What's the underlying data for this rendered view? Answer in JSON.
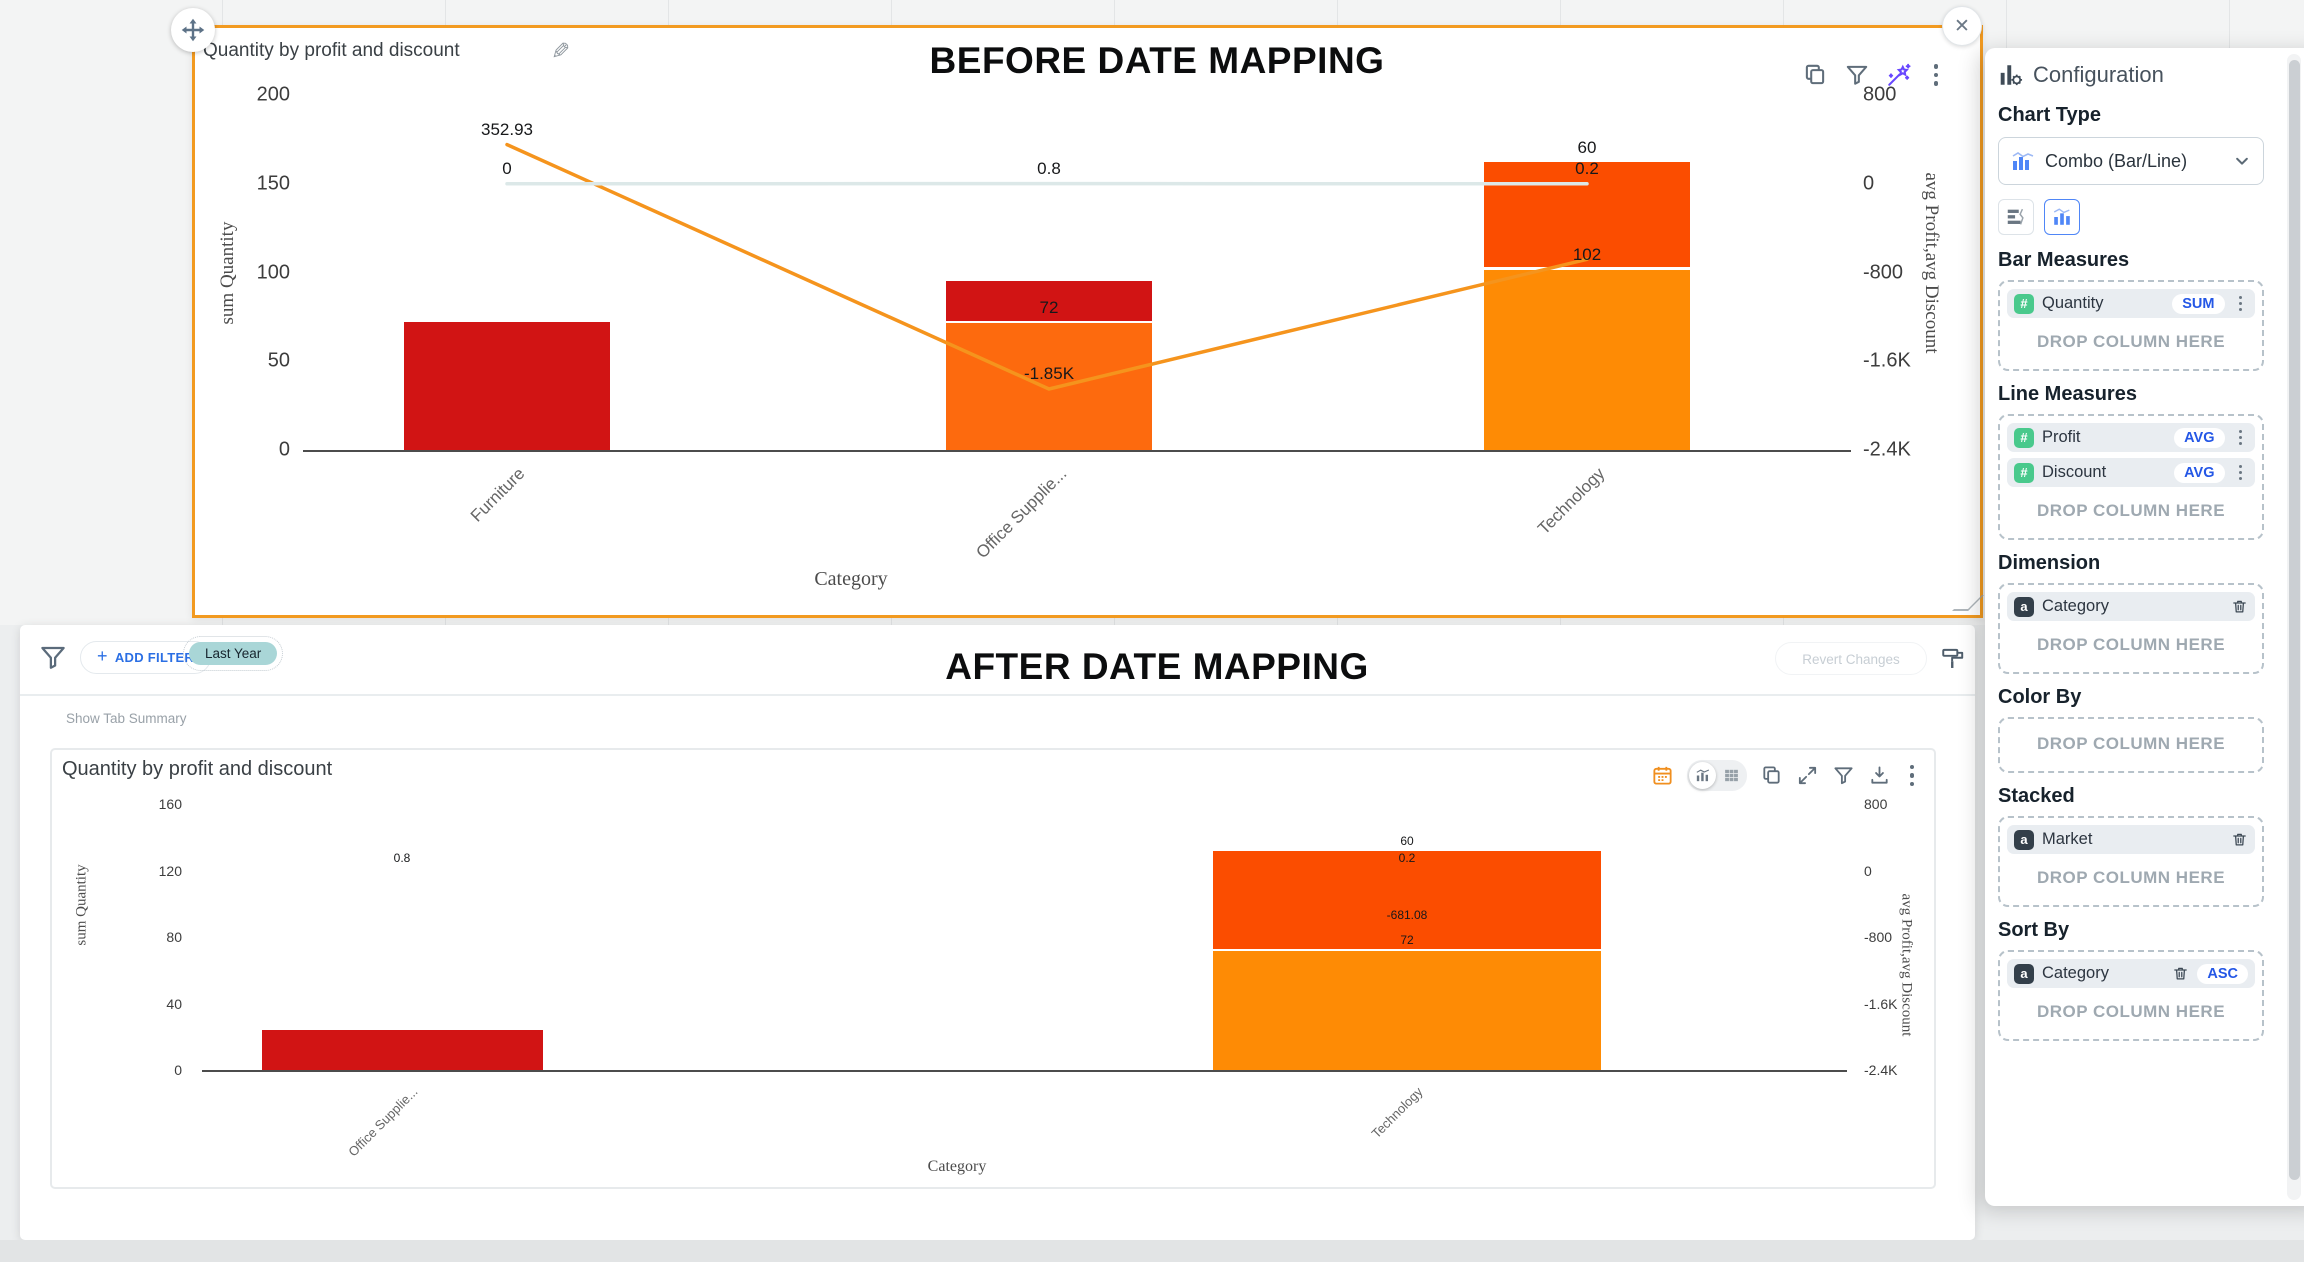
{
  "overlays": {
    "before": "BEFORE DATE MAPPING",
    "after": "AFTER DATE MAPPING"
  },
  "icons": {
    "edit": "✎",
    "close": "✕",
    "plus": "+"
  },
  "colors": {
    "accent_border": "#f29a20",
    "bar_red": "#d11414",
    "bar_orange": "#fd6a0e",
    "bar_orange_red": "#fb4d00",
    "bar_amber": "#fe8b05",
    "profit_line": "#f5941d",
    "discount_line": "#dce8e8",
    "link_blue": "#2b6fe4",
    "pill_blue": "#2457e6",
    "wand_purple": "#6847ff",
    "teal_chip": "#a9d6d7",
    "calendar_orange": "#f08f1f",
    "badge_green": "#49c98c",
    "badge_dark": "#333f4a"
  },
  "top_chart": {
    "toolbar_icons": [
      "copy",
      "filter",
      "magic-wand",
      "more"
    ]
  },
  "bottom": {
    "filter_bar": {
      "add_filter": "ADD FILTER",
      "active_filter": "Last Year",
      "revert": "Revert Changes"
    },
    "show_tab_summary": "Show Tab Summary",
    "toolbar_icons": [
      "calendar",
      "chart-toggle",
      "table-toggle",
      "copy",
      "expand",
      "filter",
      "download",
      "more"
    ]
  },
  "config_panel": {
    "title": "Configuration",
    "chart_type_label": "Chart Type",
    "chart_type_value": "Combo (Bar/Line)",
    "sections": [
      {
        "label": "Bar Measures",
        "drop": "DROP COLUMN HERE",
        "chips": [
          {
            "badge": "#",
            "name": "Quantity",
            "pill": "SUM",
            "icon": "kebab",
            "order": "pill-first"
          }
        ]
      },
      {
        "label": "Line Measures",
        "drop": "DROP COLUMN HERE",
        "chips": [
          {
            "badge": "#",
            "name": "Profit",
            "pill": "AVG",
            "icon": "kebab",
            "order": "pill-first"
          },
          {
            "badge": "#",
            "name": "Discount",
            "pill": "AVG",
            "icon": "kebab",
            "order": "pill-first"
          }
        ]
      },
      {
        "label": "Dimension",
        "drop": "DROP COLUMN HERE",
        "chips": [
          {
            "badge": "a",
            "name": "Category",
            "icon": "trash"
          }
        ]
      },
      {
        "label": "Color By",
        "drop": "DROP COLUMN HERE",
        "chips": []
      },
      {
        "label": "Stacked",
        "drop": "DROP COLUMN HERE",
        "chips": [
          {
            "badge": "a",
            "name": "Market",
            "icon": "trash"
          }
        ]
      },
      {
        "label": "Sort By",
        "drop": "DROP COLUMN HERE",
        "chips": [
          {
            "badge": "a",
            "name": "Category",
            "icon": "trash",
            "pill": "ASC",
            "order": "icon-first"
          }
        ]
      }
    ]
  },
  "chart_data": [
    {
      "type": "combo-bar-line",
      "title": "Quantity by profit and discount",
      "stacked_by": "Market",
      "categories": [
        "Furniture",
        "Office Supplie...",
        "Technology"
      ],
      "bars": [
        {
          "segments": [
            {
              "value": 72,
              "color": "bar_red",
              "label": null
            }
          ]
        },
        {
          "segments": [
            {
              "value": 72,
              "color": "bar_orange",
              "label": "72"
            },
            {
              "value": 23,
              "color": "bar_red",
              "label": null
            }
          ]
        },
        {
          "segments": [
            {
              "value": 102,
              "color": "bar_amber",
              "label": "102"
            },
            {
              "value": 60,
              "color": "bar_orange_red",
              "label": "60"
            }
          ]
        }
      ],
      "lines": [
        {
          "name": "avg Profit",
          "color": "profit_line",
          "visible": true,
          "values": [
            352.93,
            -1850,
            -681.08
          ],
          "labels": [
            "352.93",
            "-1.85K",
            null
          ]
        },
        {
          "name": "avg Discount",
          "color": "discount_line",
          "visible": true,
          "values": [
            0,
            0.8,
            0.2
          ],
          "labels": [
            "0",
            "0.8",
            "0.2"
          ]
        }
      ],
      "left_axis": {
        "name": "sum Quantity",
        "tick_values": [
          200,
          150,
          100,
          50,
          0
        ],
        "tick_labels": [
          "200",
          "150",
          "100",
          "50",
          "0"
        ],
        "max": 200
      },
      "right_axis": {
        "name": "avg Profit,avg Discount",
        "tick_values": [
          800,
          0,
          -800,
          -1600,
          -2400
        ],
        "tick_labels": [
          "800",
          "0",
          "-800",
          "-1.6K",
          "-2.4K"
        ],
        "max": 800,
        "min": -2400
      },
      "x_axis_name": "Category"
    },
    {
      "type": "combo-bar-line",
      "title": "Quantity by profit and discount",
      "stacked_by": "Market",
      "categories": [
        "Office Supplie...",
        "Technology"
      ],
      "bars": [
        {
          "segments": [
            {
              "value": 24,
              "color": "bar_red",
              "label": null
            }
          ]
        },
        {
          "segments": [
            {
              "value": 72,
              "color": "bar_amber",
              "label": "72"
            },
            {
              "value": 60,
              "color": "bar_orange_red",
              "label": "60"
            }
          ]
        }
      ],
      "lines": [
        {
          "name": "avg Profit",
          "color": "profit_line",
          "visible": false,
          "values": [
            null,
            -681.08
          ],
          "labels": [
            null,
            "-681.08"
          ]
        },
        {
          "name": "avg Discount",
          "color": "discount_line",
          "visible": false,
          "values": [
            0.8,
            0.2
          ],
          "labels": [
            "0.8",
            "0.2"
          ]
        }
      ],
      "left_axis": {
        "name": "sum Quantity",
        "tick_values": [
          160,
          120,
          80,
          40,
          0
        ],
        "tick_labels": [
          "160",
          "120",
          "80",
          "40",
          "0"
        ],
        "max": 160
      },
      "right_axis": {
        "name": "avg Profit,avg Discount",
        "tick_values": [
          800,
          0,
          -800,
          -1600,
          -2400
        ],
        "tick_labels": [
          "800",
          "0",
          "-800",
          "-1.6K",
          "-2.4K"
        ],
        "max": 800,
        "min": -2400
      },
      "x_axis_name": "Category"
    }
  ]
}
